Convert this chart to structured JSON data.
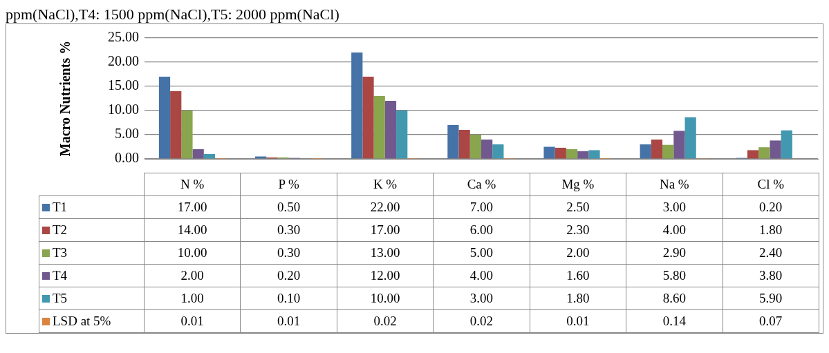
{
  "chart_data": {
    "type": "bar",
    "annotations": [
      "ppm(NaCl),T4: 1500 ppm(NaCl),T5: 2000 ppm(NaCl)"
    ],
    "ylabel": "Macro Nutrients %",
    "categories": [
      "N %",
      "P %",
      "K %",
      "Ca %",
      "Mg %",
      "Na %",
      "Cl %"
    ],
    "series": [
      {
        "name": "T1",
        "color": "#4572a7",
        "values": [
          17,
          0.5,
          22,
          7,
          2.5,
          3,
          0.2
        ],
        "value_labels": [
          "17.00",
          "0.50",
          "22.00",
          "7.00",
          "2.50",
          "3.00",
          "0.20"
        ]
      },
      {
        "name": "T2",
        "color": "#aa4643",
        "values": [
          14,
          0.3,
          17,
          6,
          2.3,
          4,
          1.8
        ],
        "value_labels": [
          "14.00",
          "0.30",
          "17.00",
          "6.00",
          "2.30",
          "4.00",
          "1.80"
        ]
      },
      {
        "name": "T3",
        "color": "#89a54e",
        "values": [
          10,
          0.3,
          13,
          5,
          2,
          2.9,
          2.4
        ],
        "value_labels": [
          "10.00",
          "0.30",
          "13.00",
          "5.00",
          "2.00",
          "2.90",
          "2.40"
        ]
      },
      {
        "name": "T4",
        "color": "#71588f",
        "values": [
          2,
          0.2,
          12,
          4,
          1.6,
          5.8,
          3.8
        ],
        "value_labels": [
          "2.00",
          "0.20",
          "12.00",
          "4.00",
          "1.60",
          "5.80",
          "3.80"
        ]
      },
      {
        "name": "T5",
        "color": "#4198af",
        "values": [
          1,
          0.1,
          10,
          3,
          1.8,
          8.6,
          5.9
        ],
        "value_labels": [
          "1.00",
          "0.10",
          "10.00",
          "3.00",
          "1.80",
          "8.60",
          "5.90"
        ]
      },
      {
        "name": "LSD at 5%",
        "color": "#db843d",
        "values": [
          0.01,
          0.01,
          0.02,
          0.02,
          0.01,
          0.14,
          0.07
        ],
        "value_labels": [
          "0.01",
          "0.01",
          "0.02",
          "0.02",
          "0.01",
          "0.14",
          "0.07"
        ]
      }
    ],
    "ylim": [
      0,
      25
    ],
    "yticks": [
      {
        "value": 0,
        "label": "0.00"
      },
      {
        "value": 5,
        "label": "5.00"
      },
      {
        "value": 10,
        "label": "10.00"
      },
      {
        "value": 15,
        "label": "15.00"
      },
      {
        "value": 20,
        "label": "20.00"
      },
      {
        "value": 25,
        "label": "25.00"
      }
    ],
    "grid": "y",
    "legend": "bottom"
  }
}
